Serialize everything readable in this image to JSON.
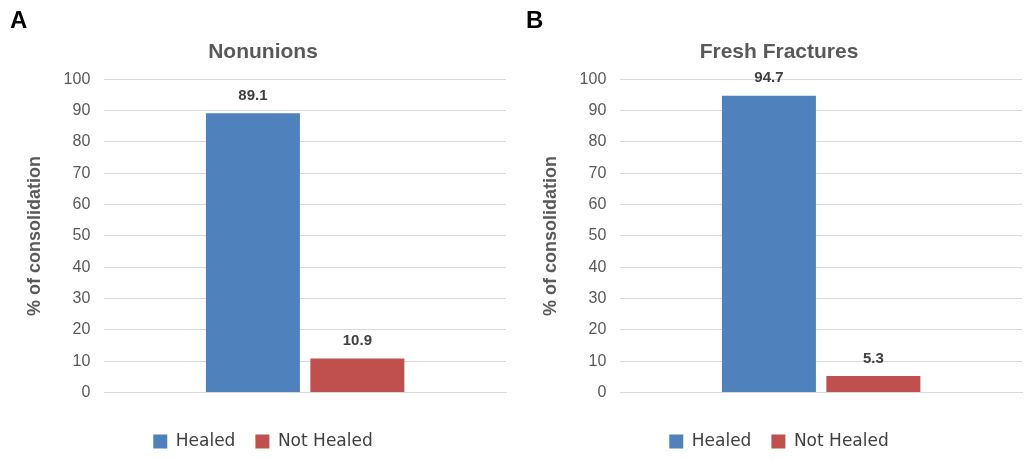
{
  "chart_data": [
    {
      "type": "bar",
      "title": "Nonunions",
      "ylabel": "% of consolidation",
      "annotations": [
        "A"
      ],
      "categories": [
        null
      ],
      "series": [
        {
          "name": "Healed",
          "color": "#4f81bd",
          "values": [
            89.1
          ]
        },
        {
          "name": "Not Healed",
          "color": "#c0504d",
          "values": [
            10.9
          ]
        }
      ],
      "ylim": [
        0,
        100
      ],
      "yticks": [
        0,
        10,
        20,
        30,
        40,
        50,
        60,
        70,
        80,
        90,
        100
      ],
      "grid": "y",
      "legend": "bottom",
      "data_labels": true
    },
    {
      "type": "bar",
      "title": "Fresh Fractures",
      "ylabel": "% of consolidation",
      "annotations": [
        "B"
      ],
      "categories": [
        null
      ],
      "series": [
        {
          "name": "Healed",
          "color": "#4f81bd",
          "values": [
            94.7
          ]
        },
        {
          "name": "Not Healed",
          "color": "#c0504d",
          "values": [
            5.3
          ]
        }
      ],
      "ylim": [
        0,
        100
      ],
      "yticks": [
        0,
        10,
        20,
        30,
        40,
        50,
        60,
        70,
        80,
        90,
        100
      ],
      "grid": "y",
      "legend": "bottom",
      "data_labels": true
    }
  ]
}
